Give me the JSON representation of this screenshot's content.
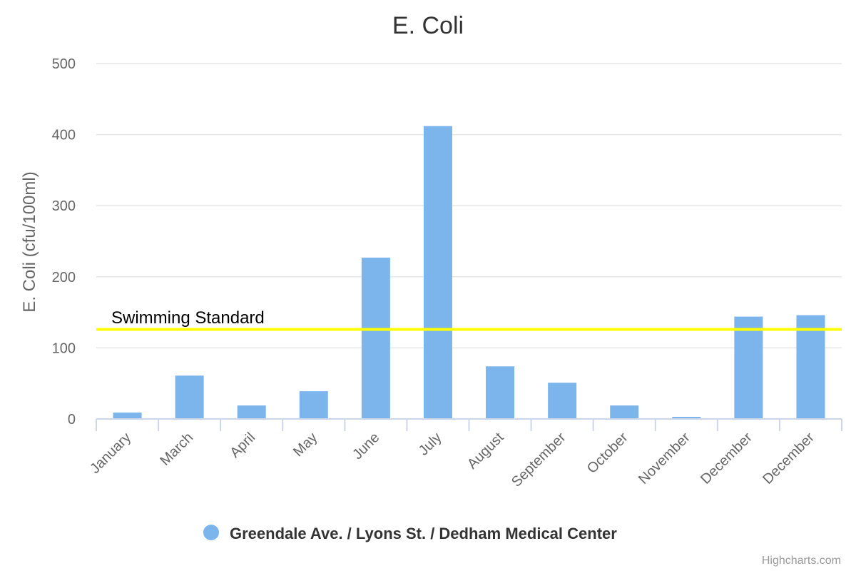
{
  "chart_data": {
    "type": "bar",
    "title": "E. Coli",
    "xlabel": "",
    "ylabel": "E. Coli (cfu/100ml)",
    "ylim": [
      0,
      500
    ],
    "yticks": [
      "0",
      "100",
      "200",
      "300",
      "400",
      "500"
    ],
    "categories": [
      "January",
      "March",
      "April",
      "May",
      "June",
      "July",
      "August",
      "September",
      "October",
      "November",
      "December",
      "December"
    ],
    "series": [
      {
        "name": "Greendale Ave. / Lyons St. / Dedham Medical Center",
        "color": "#7cb5ec",
        "values": [
          9,
          61,
          19,
          39,
          227,
          412,
          74,
          51,
          19,
          3,
          144,
          146
        ]
      }
    ],
    "plot_line": {
      "label": "Swimming Standard",
      "value": 126,
      "color": "#ffff00"
    },
    "legend_position": "bottom-center"
  },
  "credits": "Highcharts.com"
}
